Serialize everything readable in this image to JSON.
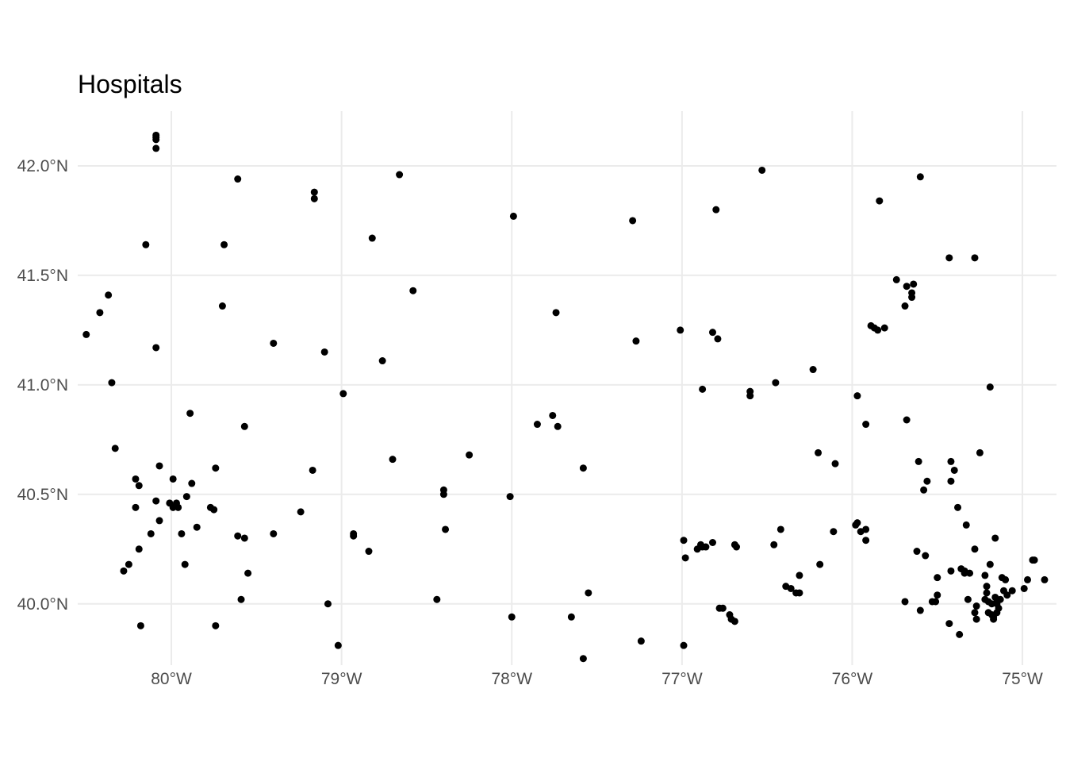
{
  "chart_data": {
    "type": "scatter",
    "title": "Hospitals",
    "xlabel": "",
    "ylabel": "",
    "xlim": [
      -80.55,
      -74.8
    ],
    "ylim": [
      39.72,
      42.25
    ],
    "grid": true,
    "x_ticks": [
      {
        "value": -80,
        "label": "80°W"
      },
      {
        "value": -79,
        "label": "79°W"
      },
      {
        "value": -78,
        "label": "78°W"
      },
      {
        "value": -77,
        "label": "77°W"
      },
      {
        "value": -76,
        "label": "76°W"
      },
      {
        "value": -75,
        "label": "75°W"
      }
    ],
    "y_ticks": [
      {
        "value": 40.0,
        "label": "40.0°N"
      },
      {
        "value": 40.5,
        "label": "40.5°N"
      },
      {
        "value": 41.0,
        "label": "41.0°N"
      },
      {
        "value": 41.5,
        "label": "41.5°N"
      },
      {
        "value": 42.0,
        "label": "42.0°N"
      }
    ],
    "points": [
      [
        -80.09,
        42.13
      ],
      [
        -80.09,
        42.14
      ],
      [
        -80.09,
        42.12
      ],
      [
        -80.09,
        42.08
      ],
      [
        -79.61,
        41.94
      ],
      [
        -79.16,
        41.88
      ],
      [
        -79.16,
        41.85
      ],
      [
        -78.66,
        41.96
      ],
      [
        -78.82,
        41.67
      ],
      [
        -79.69,
        41.64
      ],
      [
        -80.15,
        41.64
      ],
      [
        -78.58,
        41.43
      ],
      [
        -80.37,
        41.41
      ],
      [
        -80.42,
        41.33
      ],
      [
        -80.5,
        41.23
      ],
      [
        -79.7,
        41.36
      ],
      [
        -80.09,
        41.17
      ],
      [
        -79.4,
        41.19
      ],
      [
        -79.1,
        41.15
      ],
      [
        -78.76,
        41.11
      ],
      [
        -80.35,
        41.01
      ],
      [
        -78.99,
        40.96
      ],
      [
        -79.89,
        40.87
      ],
      [
        -79.57,
        40.81
      ],
      [
        -80.33,
        40.71
      ],
      [
        -80.07,
        40.63
      ],
      [
        -80.21,
        40.57
      ],
      [
        -79.99,
        40.57
      ],
      [
        -80.19,
        40.54
      ],
      [
        -79.88,
        40.55
      ],
      [
        -79.74,
        40.62
      ],
      [
        -79.17,
        40.61
      ],
      [
        -80.09,
        40.47
      ],
      [
        -80.01,
        40.46
      ],
      [
        -79.99,
        40.44
      ],
      [
        -79.97,
        40.46
      ],
      [
        -79.96,
        40.44
      ],
      [
        -79.91,
        40.49
      ],
      [
        -79.77,
        40.44
      ],
      [
        -79.75,
        40.43
      ],
      [
        -80.21,
        40.44
      ],
      [
        -80.07,
        40.38
      ],
      [
        -79.85,
        40.35
      ],
      [
        -80.12,
        40.32
      ],
      [
        -79.94,
        40.32
      ],
      [
        -79.61,
        40.31
      ],
      [
        -79.57,
        40.3
      ],
      [
        -79.4,
        40.32
      ],
      [
        -79.24,
        40.42
      ],
      [
        -80.19,
        40.25
      ],
      [
        -80.25,
        40.18
      ],
      [
        -80.28,
        40.15
      ],
      [
        -79.92,
        40.18
      ],
      [
        -79.55,
        40.14
      ],
      [
        -79.59,
        40.02
      ],
      [
        -79.74,
        39.9
      ],
      [
        -80.18,
        39.9
      ],
      [
        -79.08,
        40.0
      ],
      [
        -79.02,
        39.81
      ],
      [
        -78.93,
        40.32
      ],
      [
        -78.93,
        40.31
      ],
      [
        -78.84,
        40.24
      ],
      [
        -78.7,
        40.66
      ],
      [
        -78.4,
        40.52
      ],
      [
        -78.4,
        40.5
      ],
      [
        -78.25,
        40.68
      ],
      [
        -78.39,
        40.34
      ],
      [
        -78.44,
        40.02
      ],
      [
        -78.01,
        40.49
      ],
      [
        -78.0,
        39.94
      ],
      [
        -77.99,
        41.77
      ],
      [
        -77.29,
        41.75
      ],
      [
        -77.74,
        41.33
      ],
      [
        -77.27,
        41.2
      ],
      [
        -77.01,
        41.25
      ],
      [
        -76.82,
        41.24
      ],
      [
        -76.79,
        41.21
      ],
      [
        -76.8,
        41.8
      ],
      [
        -76.53,
        41.98
      ],
      [
        -75.84,
        41.84
      ],
      [
        -75.6,
        41.95
      ],
      [
        -77.85,
        40.82
      ],
      [
        -77.76,
        40.86
      ],
      [
        -77.73,
        40.81
      ],
      [
        -77.58,
        40.62
      ],
      [
        -77.55,
        40.05
      ],
      [
        -77.65,
        39.94
      ],
      [
        -77.58,
        39.75
      ],
      [
        -77.24,
        39.83
      ],
      [
        -76.99,
        39.81
      ],
      [
        -76.99,
        40.29
      ],
      [
        -76.98,
        40.21
      ],
      [
        -76.91,
        40.25
      ],
      [
        -76.89,
        40.27
      ],
      [
        -76.88,
        40.26
      ],
      [
        -76.86,
        40.26
      ],
      [
        -76.88,
        40.98
      ],
      [
        -76.82,
        40.28
      ],
      [
        -76.78,
        39.98
      ],
      [
        -76.76,
        39.98
      ],
      [
        -76.72,
        39.95
      ],
      [
        -76.71,
        39.93
      ],
      [
        -76.69,
        39.92
      ],
      [
        -76.69,
        40.27
      ],
      [
        -76.68,
        40.26
      ],
      [
        -76.6,
        40.97
      ],
      [
        -76.6,
        40.95
      ],
      [
        -76.45,
        41.01
      ],
      [
        -76.46,
        40.27
      ],
      [
        -76.42,
        40.34
      ],
      [
        -76.39,
        40.08
      ],
      [
        -76.36,
        40.07
      ],
      [
        -76.33,
        40.05
      ],
      [
        -76.31,
        40.05
      ],
      [
        -76.31,
        40.13
      ],
      [
        -76.23,
        41.07
      ],
      [
        -76.2,
        40.69
      ],
      [
        -76.19,
        40.18
      ],
      [
        -76.1,
        40.64
      ],
      [
        -76.11,
        40.33
      ],
      [
        -75.98,
        40.36
      ],
      [
        -75.97,
        40.37
      ],
      [
        -75.95,
        40.33
      ],
      [
        -75.92,
        40.34
      ],
      [
        -75.92,
        40.29
      ],
      [
        -75.97,
        40.95
      ],
      [
        -75.92,
        40.82
      ],
      [
        -75.89,
        41.27
      ],
      [
        -75.87,
        41.26
      ],
      [
        -75.85,
        41.25
      ],
      [
        -75.81,
        41.26
      ],
      [
        -75.74,
        41.48
      ],
      [
        -75.68,
        41.45
      ],
      [
        -75.64,
        41.46
      ],
      [
        -75.65,
        41.42
      ],
      [
        -75.65,
        41.4
      ],
      [
        -75.69,
        41.36
      ],
      [
        -75.68,
        40.84
      ],
      [
        -75.43,
        41.58
      ],
      [
        -75.28,
        41.58
      ],
      [
        -75.19,
        40.99
      ],
      [
        -75.61,
        40.65
      ],
      [
        -75.56,
        40.56
      ],
      [
        -75.58,
        40.52
      ],
      [
        -75.42,
        40.65
      ],
      [
        -75.4,
        40.61
      ],
      [
        -75.42,
        40.56
      ],
      [
        -75.25,
        40.69
      ],
      [
        -75.38,
        40.44
      ],
      [
        -75.33,
        40.36
      ],
      [
        -75.28,
        40.25
      ],
      [
        -75.62,
        40.24
      ],
      [
        -75.57,
        40.22
      ],
      [
        -75.16,
        40.3
      ],
      [
        -75.19,
        40.18
      ],
      [
        -75.42,
        40.15
      ],
      [
        -75.36,
        40.16
      ],
      [
        -75.34,
        40.14
      ],
      [
        -75.31,
        40.14
      ],
      [
        -75.34,
        40.15
      ],
      [
        -75.5,
        40.12
      ],
      [
        -75.5,
        40.04
      ],
      [
        -75.53,
        40.01
      ],
      [
        -75.51,
        40.01
      ],
      [
        -75.69,
        40.01
      ],
      [
        -75.6,
        39.97
      ],
      [
        -75.43,
        39.91
      ],
      [
        -75.37,
        39.86
      ],
      [
        -75.32,
        40.02
      ],
      [
        -75.28,
        39.96
      ],
      [
        -75.27,
        39.99
      ],
      [
        -75.27,
        39.93
      ],
      [
        -75.22,
        40.13
      ],
      [
        -75.21,
        40.08
      ],
      [
        -75.21,
        40.05
      ],
      [
        -75.22,
        40.02
      ],
      [
        -75.2,
        40.01
      ],
      [
        -75.2,
        39.96
      ],
      [
        -75.18,
        40.0
      ],
      [
        -75.18,
        39.95
      ],
      [
        -75.17,
        39.94
      ],
      [
        -75.17,
        39.93
      ],
      [
        -75.16,
        40.03
      ],
      [
        -75.15,
        40.01
      ],
      [
        -75.15,
        40.0
      ],
      [
        -75.15,
        39.96
      ],
      [
        -75.14,
        39.98
      ],
      [
        -75.13,
        40.02
      ],
      [
        -75.12,
        40.12
      ],
      [
        -75.11,
        40.06
      ],
      [
        -75.1,
        40.11
      ],
      [
        -75.09,
        40.04
      ],
      [
        -75.06,
        40.06
      ],
      [
        -74.99,
        40.07
      ],
      [
        -74.97,
        40.11
      ],
      [
        -74.94,
        40.2
      ],
      [
        -74.93,
        40.2
      ],
      [
        -74.87,
        40.11
      ]
    ]
  }
}
